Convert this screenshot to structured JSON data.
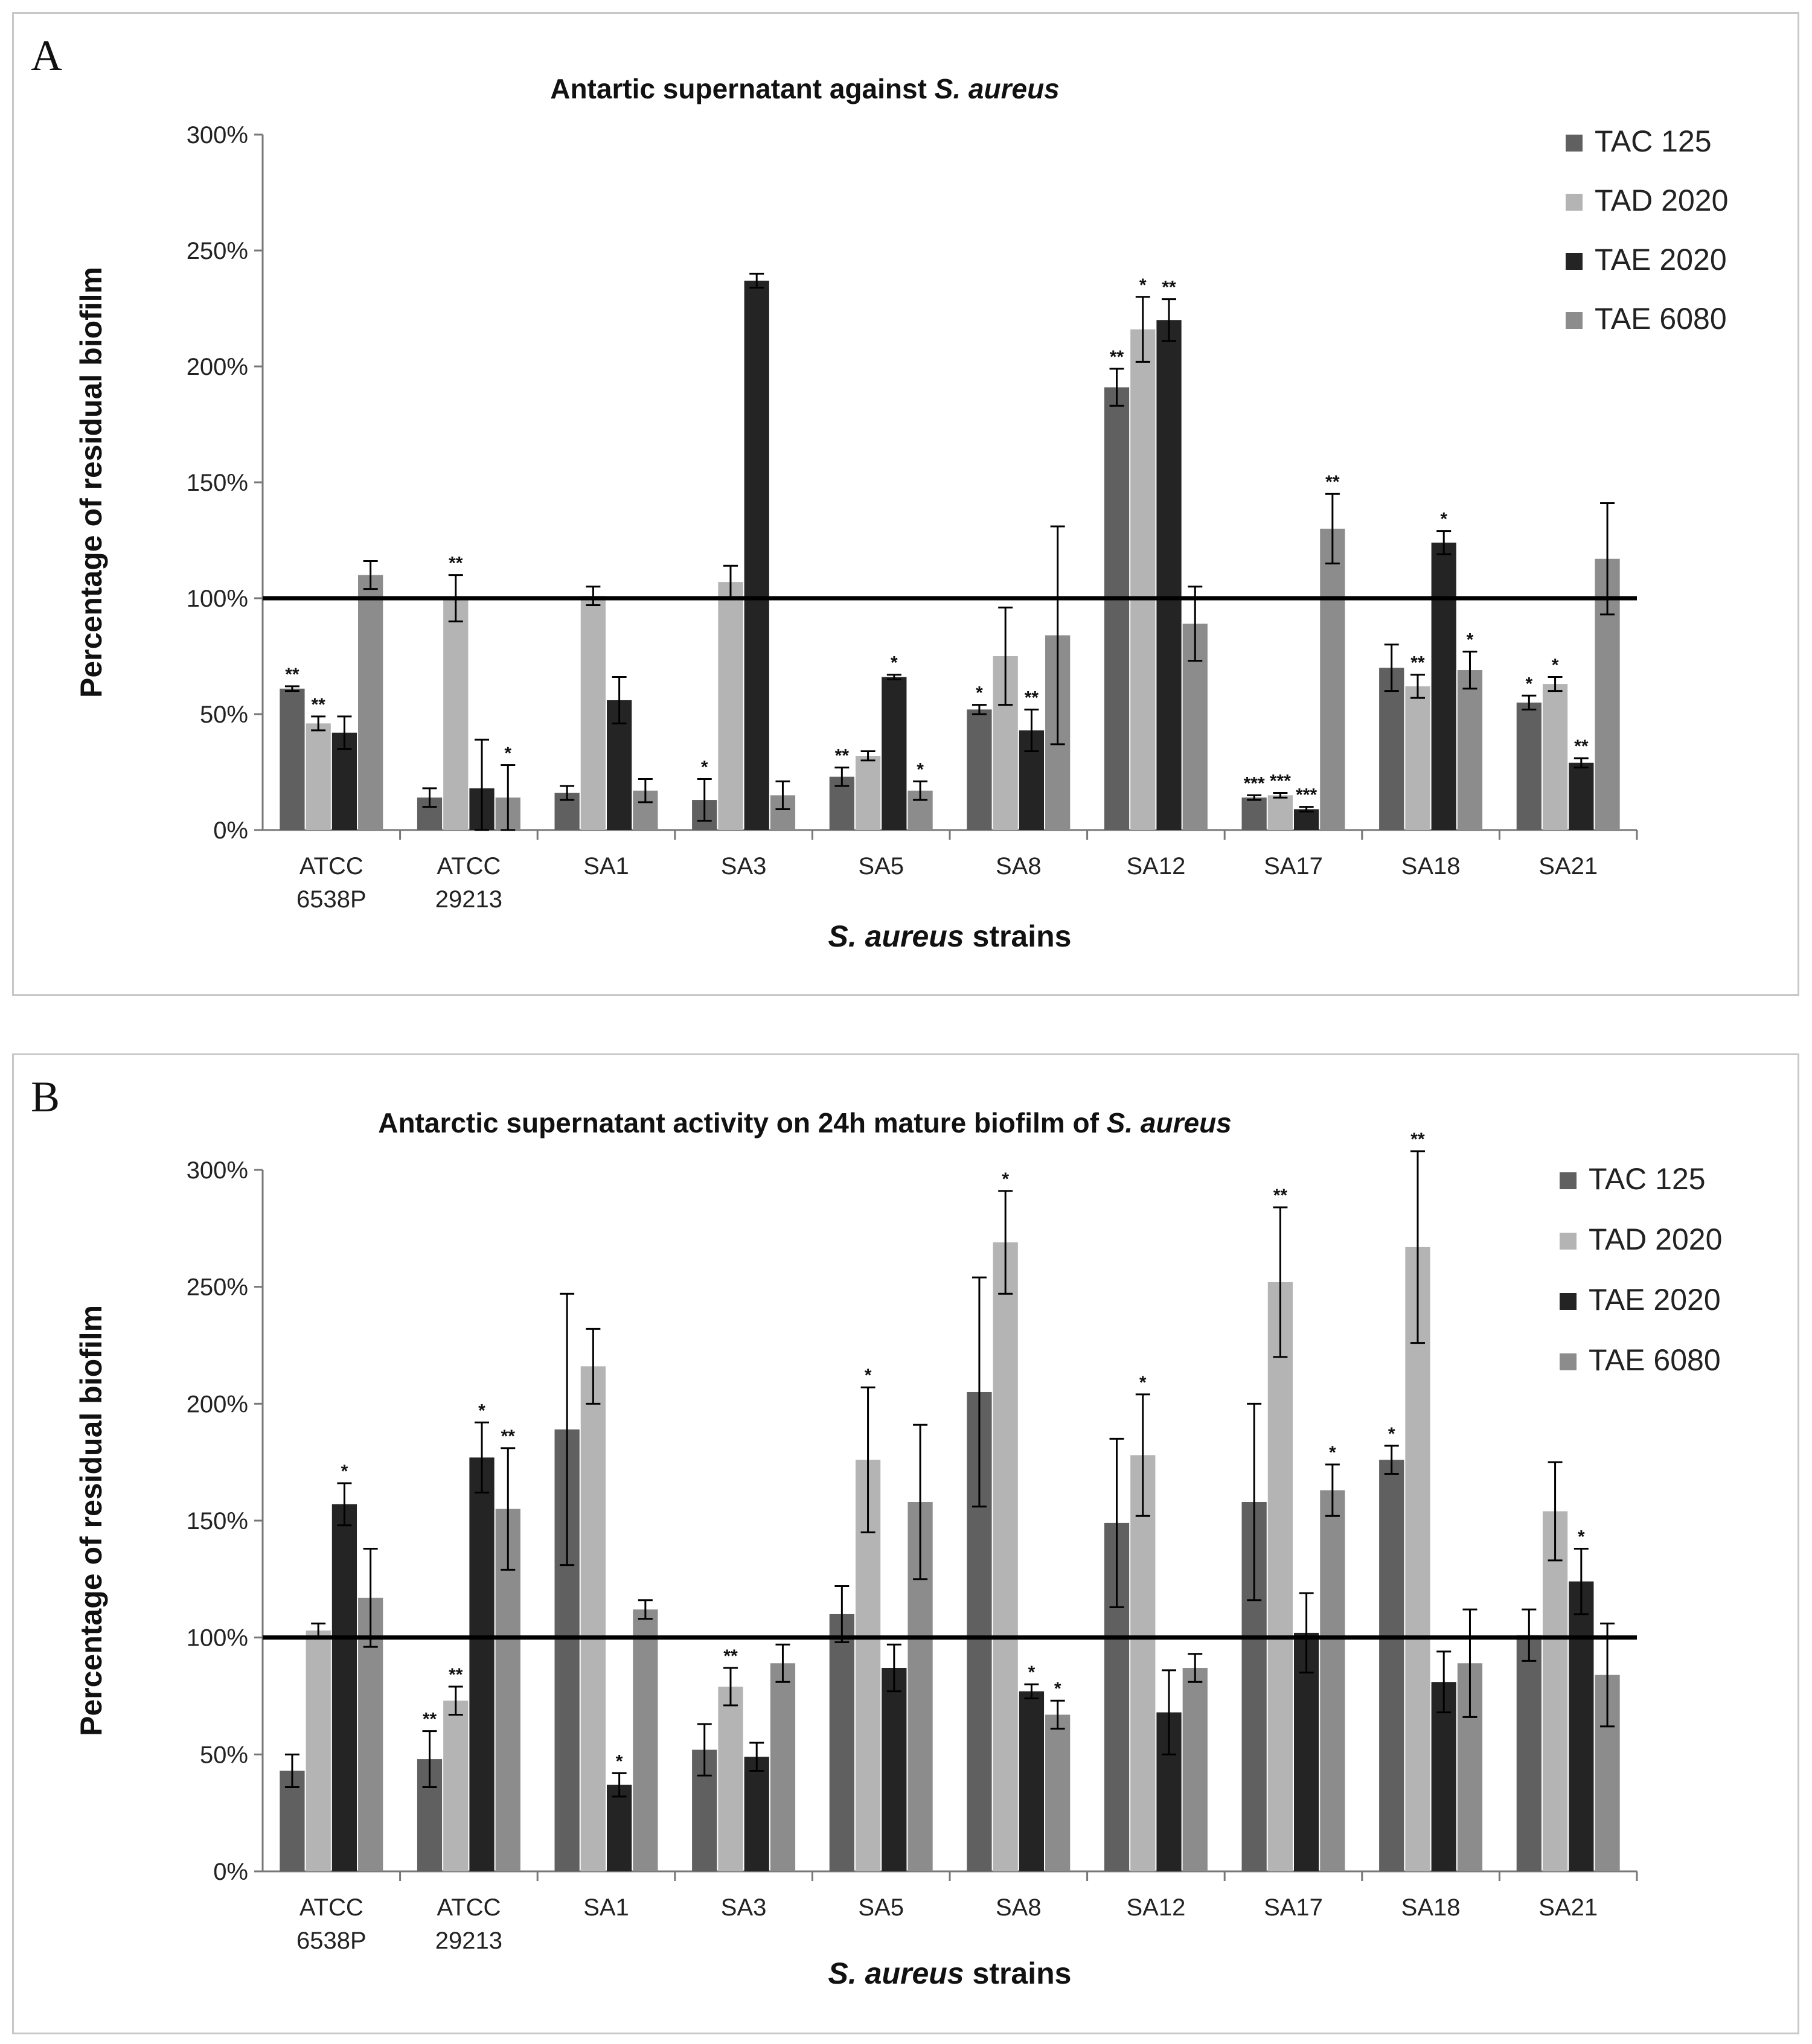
{
  "chart_data": [
    {
      "type": "bar",
      "panel_label": "A",
      "title_parts": [
        "Antartic supernatant against ",
        "S. aureus"
      ],
      "xlabel_parts": [
        "S. aureus",
        " strains"
      ],
      "ylabel": "Percentage of residual biofilm",
      "ylim": [
        0,
        300
      ],
      "yticks": [
        "0%",
        "50%",
        "100%",
        "150%",
        "200%",
        "250%",
        "300%"
      ],
      "reference_line": 100,
      "categories": [
        [
          "ATCC",
          "6538P"
        ],
        [
          "ATCC",
          "29213"
        ],
        [
          "SA1"
        ],
        [
          "SA3"
        ],
        [
          "SA5"
        ],
        [
          "SA8"
        ],
        [
          "SA12"
        ],
        [
          "SA17"
        ],
        [
          "SA18"
        ],
        [
          "SA21"
        ]
      ],
      "series": [
        {
          "name": "TAC 125",
          "color": "#606060",
          "values": [
            61,
            14,
            16,
            13,
            23,
            52,
            191,
            14,
            70,
            55
          ],
          "errors": [
            1,
            4,
            3,
            9,
            4,
            2,
            8,
            1,
            10,
            3
          ],
          "sig": [
            "**",
            "",
            "",
            "*",
            "**",
            "*",
            "**",
            "***",
            "",
            "*"
          ]
        },
        {
          "name": "TAD 2020",
          "color": "#b4b4b4",
          "values": [
            46,
            100,
            101,
            107,
            32,
            75,
            216,
            15,
            62,
            63
          ],
          "errors": [
            3,
            10,
            4,
            7,
            2,
            21,
            14,
            1,
            5,
            3
          ],
          "sig": [
            "**",
            "**",
            "",
            "",
            "",
            "",
            "*",
            "***",
            "**",
            "*"
          ]
        },
        {
          "name": "TAE 2020",
          "color": "#242424",
          "values": [
            42,
            18,
            56,
            237,
            66,
            43,
            220,
            9,
            124,
            29
          ],
          "errors": [
            7,
            21,
            10,
            3,
            1,
            9,
            9,
            1,
            5,
            2
          ],
          "sig": [
            "",
            "",
            "",
            "",
            "*",
            "**",
            "**",
            "***",
            "*",
            "**"
          ]
        },
        {
          "name": "TAE 6080",
          "color": "#8c8c8c",
          "values": [
            110,
            14,
            17,
            15,
            17,
            84,
            89,
            130,
            69,
            117
          ],
          "errors": [
            6,
            14,
            5,
            6,
            4,
            47,
            16,
            15,
            8,
            24
          ],
          "sig": [
            "",
            "*",
            "",
            "",
            "*",
            "",
            "",
            "**",
            "*",
            ""
          ]
        }
      ]
    },
    {
      "type": "bar",
      "panel_label": "B",
      "title_parts": [
        "Antarctic supernatant activity on 24h mature biofilm of ",
        "S. aureus"
      ],
      "xlabel_parts": [
        "S. aureus",
        " strains"
      ],
      "ylabel": "Percentage of residual biofilm",
      "ylim": [
        0,
        300
      ],
      "yticks": [
        "0%",
        "50%",
        "100%",
        "150%",
        "200%",
        "250%",
        "300%"
      ],
      "reference_line": 100,
      "categories": [
        [
          "ATCC",
          "6538P"
        ],
        [
          "ATCC",
          "29213"
        ],
        [
          "SA1"
        ],
        [
          "SA3"
        ],
        [
          "SA5"
        ],
        [
          "SA8"
        ],
        [
          "SA12"
        ],
        [
          "SA17"
        ],
        [
          "SA18"
        ],
        [
          "SA21"
        ]
      ],
      "series": [
        {
          "name": "TAC 125",
          "color": "#606060",
          "values": [
            43,
            48,
            189,
            52,
            110,
            205,
            149,
            158,
            176,
            101
          ],
          "errors": [
            7,
            12,
            58,
            11,
            12,
            49,
            36,
            42,
            6,
            11
          ],
          "sig": [
            "",
            "**",
            "",
            "",
            "",
            "",
            "",
            "",
            "*",
            ""
          ]
        },
        {
          "name": "TAD 2020",
          "color": "#b4b4b4",
          "values": [
            103,
            73,
            216,
            79,
            176,
            269,
            178,
            252,
            267,
            154
          ],
          "errors": [
            3,
            6,
            16,
            8,
            31,
            22,
            26,
            32,
            41,
            21
          ],
          "sig": [
            "",
            "**",
            "",
            "**",
            "*",
            "*",
            "*",
            "**",
            "**",
            ""
          ]
        },
        {
          "name": "TAE 2020",
          "color": "#242424",
          "values": [
            157,
            177,
            37,
            49,
            87,
            77,
            68,
            102,
            81,
            124
          ],
          "errors": [
            9,
            15,
            5,
            6,
            10,
            3,
            18,
            17,
            13,
            14
          ],
          "sig": [
            "*",
            "*",
            "*",
            "",
            "",
            "*",
            "",
            "",
            "",
            "*"
          ]
        },
        {
          "name": "TAE 6080",
          "color": "#8c8c8c",
          "values": [
            117,
            155,
            112,
            89,
            158,
            67,
            87,
            163,
            89,
            84
          ],
          "errors": [
            21,
            26,
            4,
            8,
            33,
            6,
            6,
            11,
            23,
            22
          ],
          "sig": [
            "",
            "**",
            "",
            "",
            "",
            "*",
            "",
            "*",
            "",
            ""
          ]
        }
      ]
    }
  ]
}
